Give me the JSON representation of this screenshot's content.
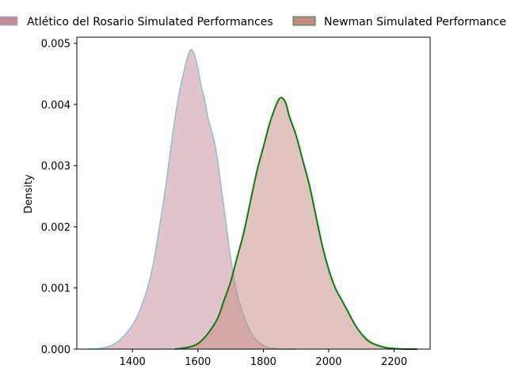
{
  "chart_data": {
    "type": "area",
    "title": "",
    "xlabel": "",
    "ylabel": "Density",
    "xlim": [
      1230,
      2310
    ],
    "ylim": [
      0,
      0.0051
    ],
    "x_ticks": [
      1400,
      1600,
      1800,
      2000,
      2200
    ],
    "y_ticks": [
      0.0,
      0.001,
      0.002,
      0.003,
      0.004,
      0.005
    ],
    "y_tick_labels": [
      "0.000",
      "0.001",
      "0.002",
      "0.003",
      "0.004",
      "0.005"
    ],
    "grid": false,
    "legend_position": "top, outside plot",
    "series": [
      {
        "name": "Atlético del Rosario Simulated Performances",
        "fill_color": "#c48a98",
        "line_color": "#8fbcd8",
        "legend_edge": "#8fbcd8",
        "x": [
          1265,
          1300,
          1340,
          1380,
          1420,
          1460,
          1500,
          1520,
          1540,
          1560,
          1570,
          1580,
          1590,
          1600,
          1610,
          1620,
          1630,
          1640,
          1650,
          1660,
          1670,
          1680,
          1690,
          1700,
          1720,
          1740,
          1760,
          1780,
          1800,
          1820,
          1840,
          1860,
          1880,
          1900
        ],
        "y": [
          0.0,
          1e-05,
          7e-05,
          0.00025,
          0.0006,
          0.0013,
          0.0026,
          0.0034,
          0.0041,
          0.0046,
          0.0048,
          0.0049,
          0.0048,
          0.0046,
          0.0043,
          0.0041,
          0.0038,
          0.0036,
          0.0034,
          0.0031,
          0.0027,
          0.0023,
          0.0019,
          0.0015,
          0.0009,
          0.00055,
          0.0003,
          0.00014,
          6e-05,
          2e-05,
          1e-05,
          0.0,
          0.0,
          0.0
        ]
      },
      {
        "name": "Newman Simulated Performances",
        "fill_color": "#c48a80",
        "line_color": "#0f7a0f",
        "legend_edge": "#2e8b3a",
        "x": [
          1530,
          1570,
          1600,
          1630,
          1660,
          1680,
          1700,
          1720,
          1740,
          1760,
          1780,
          1800,
          1820,
          1840,
          1850,
          1860,
          1870,
          1880,
          1900,
          1920,
          1940,
          1960,
          1980,
          2000,
          2020,
          2040,
          2060,
          2080,
          2100,
          2120,
          2140,
          2170,
          2200,
          2235,
          2270
        ],
        "y": [
          0.0,
          3e-05,
          9e-05,
          0.00025,
          0.0005,
          0.0008,
          0.0011,
          0.0015,
          0.0019,
          0.0024,
          0.0029,
          0.0033,
          0.0037,
          0.004,
          0.0041,
          0.0041,
          0.004,
          0.0038,
          0.0035,
          0.0031,
          0.0027,
          0.0022,
          0.0017,
          0.0013,
          0.001,
          0.0008,
          0.0006,
          0.0004,
          0.00025,
          0.00014,
          8e-05,
          3e-05,
          1e-05,
          0.0,
          0.0
        ]
      }
    ]
  }
}
